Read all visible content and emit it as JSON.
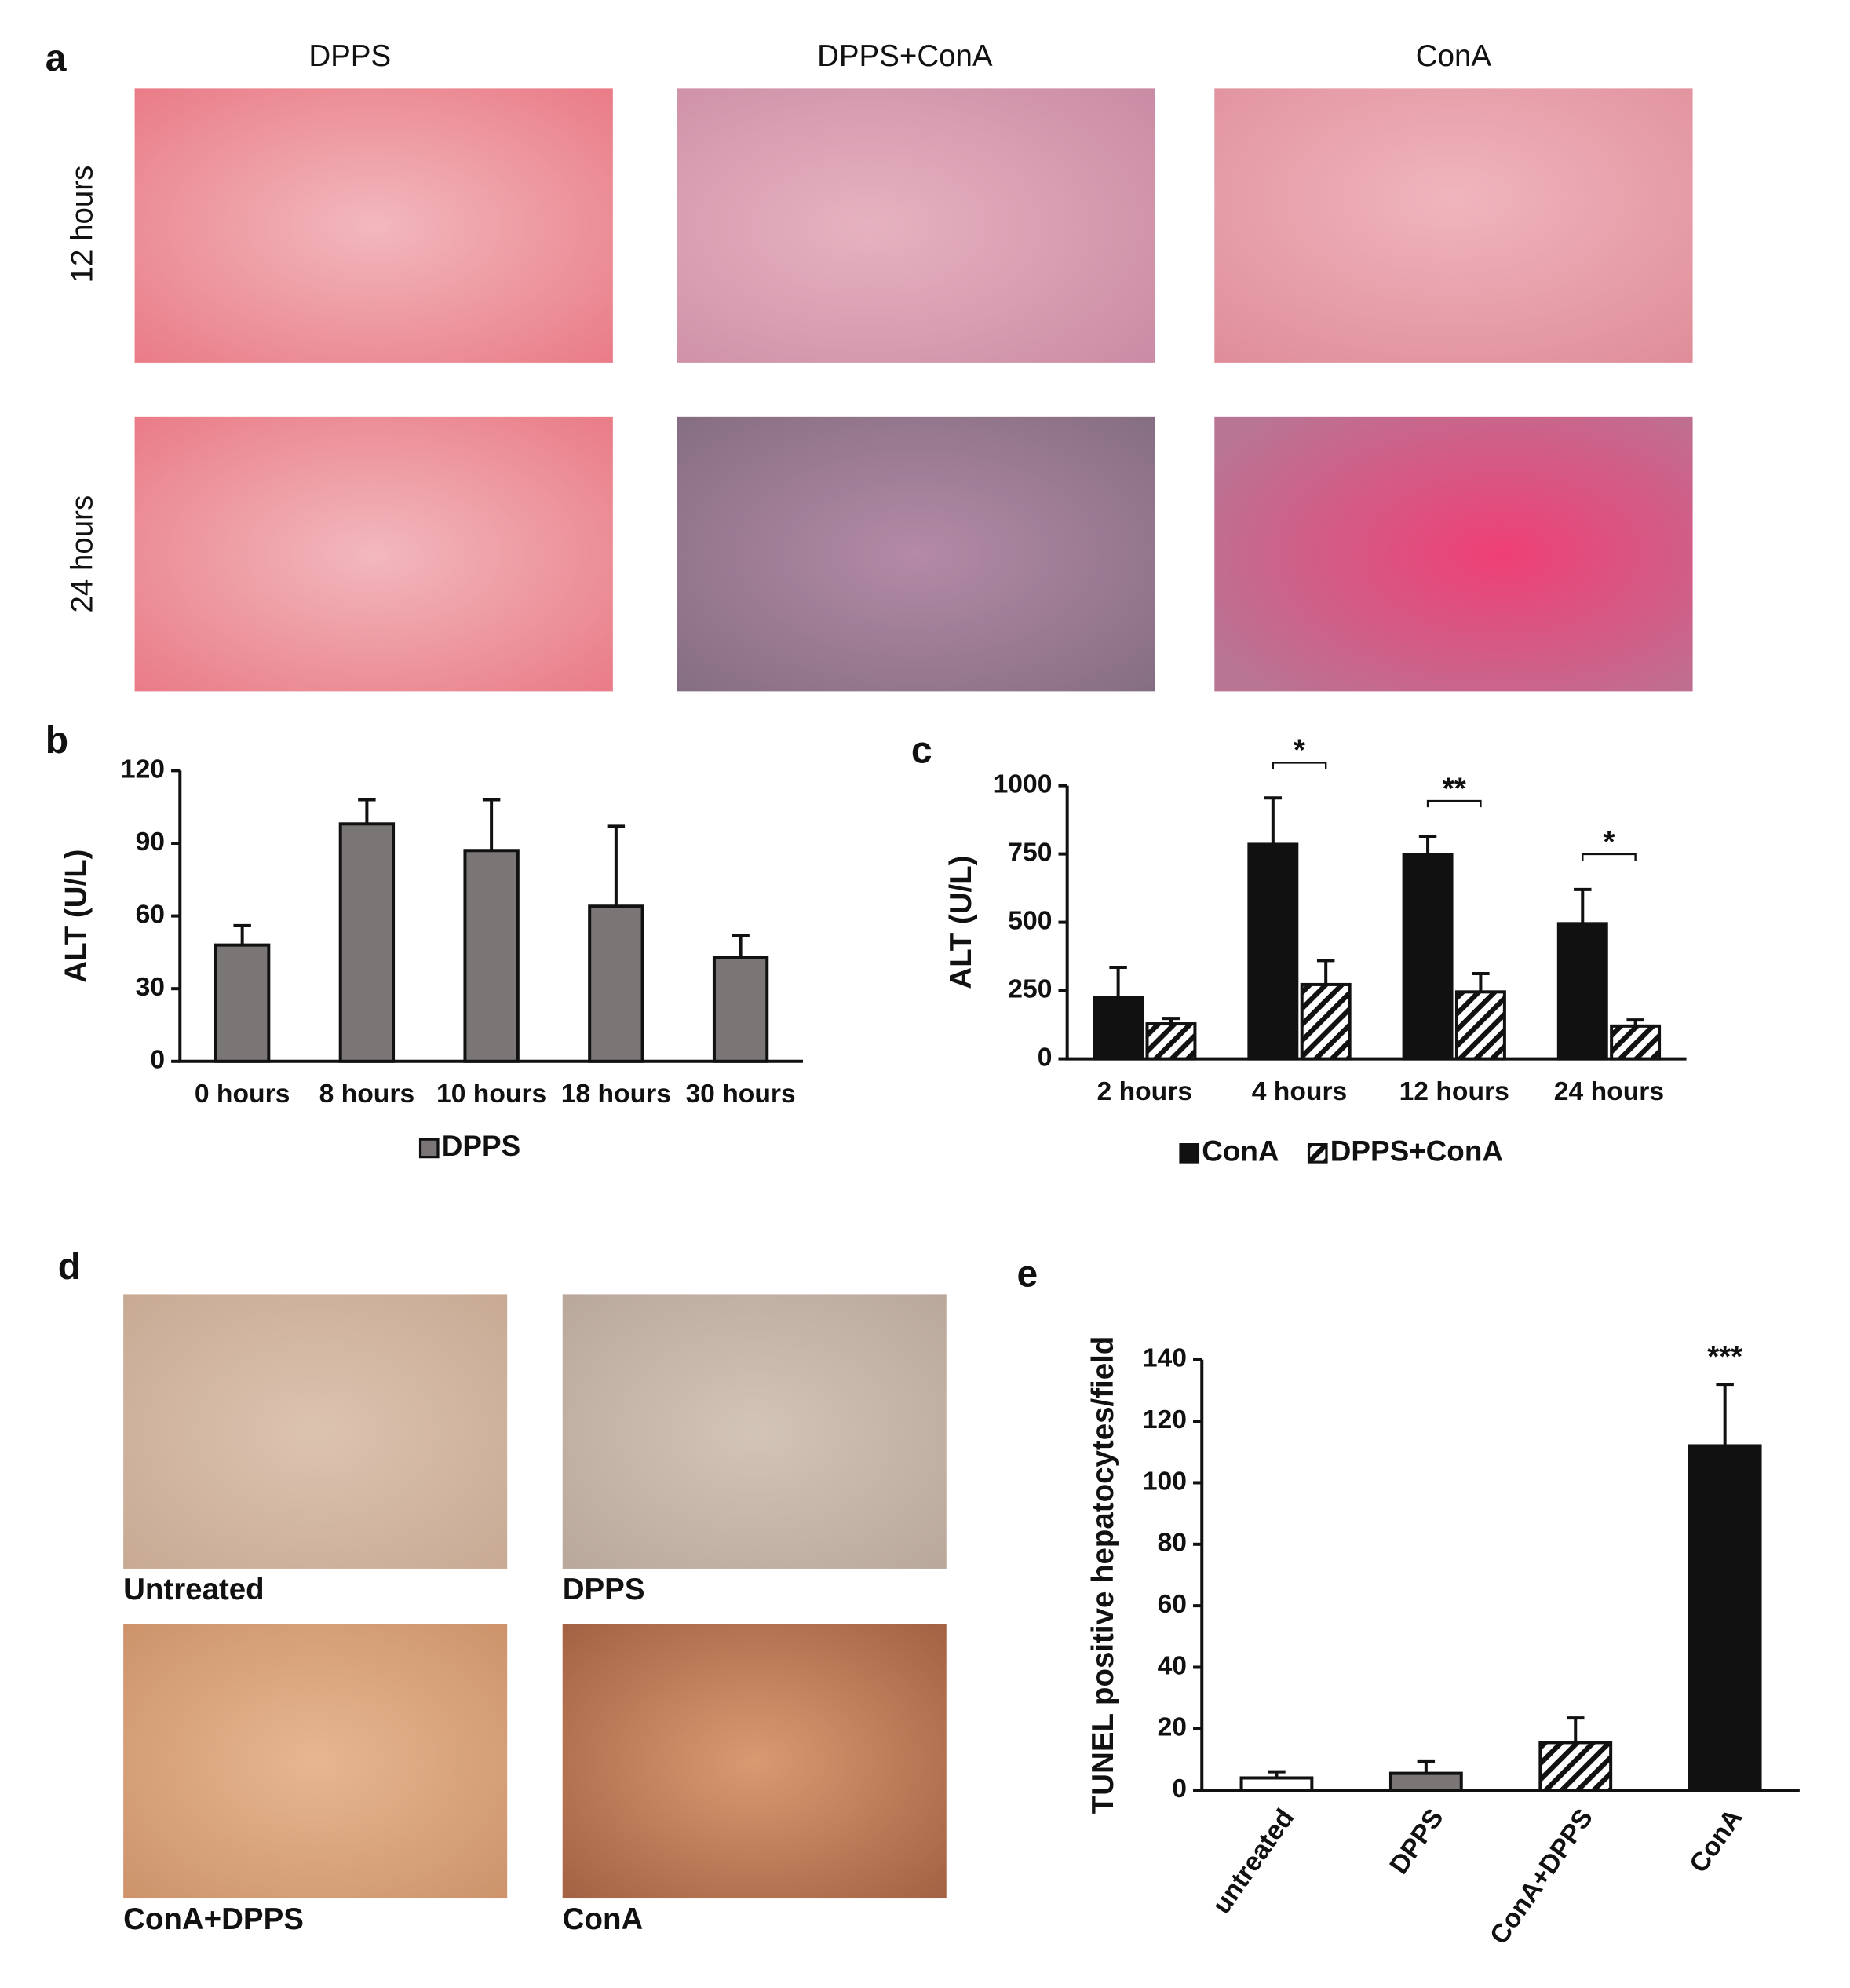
{
  "panel_labels": [
    "a",
    "b",
    "c",
    "d",
    "e"
  ],
  "panel_a": {
    "columns": [
      "DPPS",
      "DPPS+ConA",
      "ConA"
    ],
    "rows": [
      "12 hours",
      "24 hours"
    ]
  },
  "panel_d": {
    "captions": [
      "Untreated",
      "DPPS",
      "ConA+DPPS",
      "ConA"
    ]
  },
  "chart_data": [
    {
      "type": "bar",
      "ylabel": "ALT (U/L)",
      "categories": [
        "0 hours",
        "8 hours",
        "10 hours",
        "18 hours",
        "30 hours"
      ],
      "series": [
        {
          "name": "DPPS",
          "color": "#7a7676",
          "values": [
            48,
            98,
            87,
            64,
            43
          ],
          "errors": [
            8,
            10,
            21,
            33,
            9
          ]
        }
      ],
      "ylim": [
        0,
        120
      ],
      "yticks": [
        0,
        30,
        60,
        90,
        120
      ]
    },
    {
      "type": "bar",
      "ylabel": "ALT (U/L)",
      "categories": [
        "2 hours",
        "4 hours",
        "12 hours",
        "24 hours"
      ],
      "series": [
        {
          "name": "ConA",
          "color": "#111111",
          "values": [
            225,
            785,
            748,
            495
          ],
          "errors": [
            110,
            170,
            67,
            125
          ]
        },
        {
          "name": "DPPS+ConA",
          "color": "#ffffff",
          "hatch": true,
          "values": [
            128,
            272,
            245,
            120
          ],
          "errors": [
            20,
            88,
            67,
            22
          ]
        }
      ],
      "significance": [
        null,
        "*",
        "**",
        "*"
      ],
      "ylim": [
        0,
        1000
      ],
      "yticks": [
        0,
        250,
        500,
        750,
        1000
      ]
    },
    {
      "type": "bar",
      "ylabel": "TUNEL positive hepatocytes/field",
      "categories": [
        "untreated",
        "DPPS",
        "ConA+DPPS",
        "ConA"
      ],
      "values": [
        4,
        5.5,
        15.5,
        112
      ],
      "errors": [
        2,
        4,
        8,
        20
      ],
      "colors": [
        "#ffffff",
        "#7a7676",
        "#ffffff",
        "#111111"
      ],
      "hatch": [
        false,
        false,
        true,
        false
      ],
      "significance": [
        null,
        null,
        null,
        "***"
      ],
      "ylim": [
        0,
        140
      ],
      "yticks": [
        0,
        20,
        40,
        60,
        80,
        100,
        120,
        140
      ]
    }
  ]
}
